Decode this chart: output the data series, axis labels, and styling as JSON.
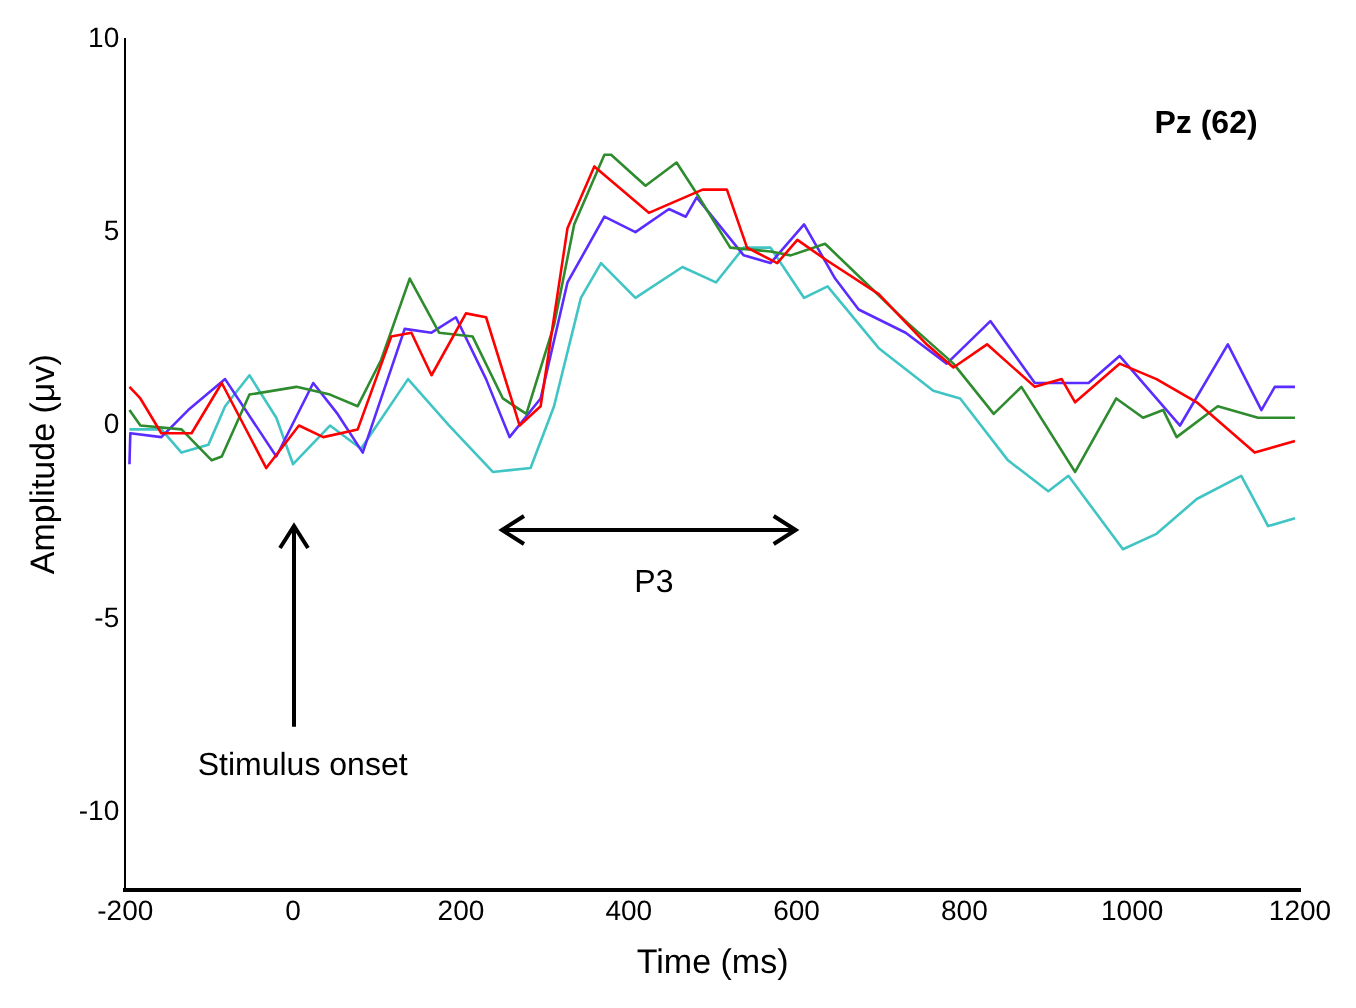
{
  "chart_data": {
    "type": "line",
    "xlabel": "Time (ms)",
    "ylabel": "Amplitude (μv)",
    "xlim": [
      -200,
      1200
    ],
    "ylim": [
      -12,
      10
    ],
    "xticks": [
      -200,
      0,
      200,
      400,
      600,
      800,
      1000,
      1200
    ],
    "yticks": [
      -10,
      -5,
      0,
      5,
      10
    ],
    "grid": false,
    "legend": false,
    "marker": "none",
    "line_style": "solid",
    "annotations": [
      "Pz (62)",
      "Stimulus onset",
      "P3"
    ],
    "series": [
      {
        "color": "#ff0000",
        "x": [
          -195,
          -182,
          -157,
          -121,
          -85,
          -32,
          7,
          36,
          77,
          117,
          141,
          165,
          206,
          230,
          270,
          295,
          327,
          359,
          424,
          488,
          517,
          541,
          577,
          601,
          634,
          698,
          755,
          787,
          827,
          884,
          916,
          932,
          985,
          1029,
          1077,
          1146,
          1194
        ],
        "values": [
          1,
          0.7,
          -0.2,
          -0.2,
          1.1,
          -1.1,
          0,
          -0.3,
          -0.1,
          2.3,
          2.4,
          1.3,
          2.9,
          2.8,
          0,
          0.5,
          5.1,
          6.7,
          5.5,
          6.1,
          6.1,
          4.6,
          4.2,
          4.8,
          4.3,
          3.4,
          2.1,
          1.5,
          2.1,
          1,
          1.2,
          0.6,
          1.6,
          1.2,
          0.6,
          -0.7,
          -0.4
        ]
      },
      {
        "color": "#2e8b2e",
        "x": [
          -195,
          -182,
          -133,
          -97,
          -85,
          -52,
          4,
          44,
          77,
          105,
          139,
          174,
          214,
          250,
          278,
          311,
          335,
          371,
          379,
          420,
          457,
          481,
          521,
          569,
          593,
          634,
          682,
          730,
          787,
          835,
          868,
          932,
          981,
          1013,
          1037,
          1053,
          1102,
          1150,
          1194
        ],
        "values": [
          0.4,
          0,
          -0.1,
          -0.9,
          -0.8,
          0.8,
          1,
          0.8,
          0.5,
          1.7,
          3.8,
          2.4,
          2.3,
          0.7,
          0.3,
          2.6,
          5.2,
          7,
          7,
          6.2,
          6.8,
          6,
          4.6,
          4.5,
          4.4,
          4.7,
          3.7,
          2.7,
          1.6,
          0.3,
          1,
          -1.2,
          0.7,
          0.2,
          0.4,
          -0.3,
          0.5,
          0.2,
          0.2
        ]
      },
      {
        "color": "#5a2cff",
        "x": [
          -195,
          -194,
          -157,
          -125,
          -81,
          -20,
          24,
          53,
          83,
          133,
          165,
          194,
          230,
          258,
          295,
          327,
          371,
          408,
          448,
          468,
          481,
          537,
          569,
          609,
          646,
          674,
          730,
          779,
          831,
          884,
          948,
          985,
          1057,
          1114,
          1154,
          1170,
          1194
        ],
        "values": [
          -1,
          -0.2,
          -0.3,
          0.4,
          1.2,
          -0.8,
          1.1,
          0.3,
          -0.7,
          2.5,
          2.4,
          2.8,
          1.2,
          -0.3,
          0.7,
          3.7,
          5.4,
          5,
          5.6,
          5.4,
          5.9,
          4.4,
          4.2,
          5.2,
          3.8,
          3,
          2.4,
          1.6,
          2.7,
          1.1,
          1.1,
          1.8,
          0,
          2.1,
          0.4,
          1,
          1
        ]
      },
      {
        "color": "#40c4c4",
        "x": [
          -195,
          -157,
          -133,
          -101,
          -81,
          -52,
          -20,
          0,
          44,
          81,
          137,
          186,
          238,
          283,
          311,
          343,
          367,
          408,
          464,
          504,
          537,
          569,
          609,
          637,
          698,
          763,
          795,
          852,
          900,
          924,
          989,
          1029,
          1077,
          1130,
          1162,
          1194
        ],
        "values": [
          -0.1,
          -0.1,
          -0.7,
          -0.5,
          0.5,
          1.3,
          0.2,
          -1,
          0,
          -0.6,
          1.2,
          0,
          -1.2,
          -1.1,
          0.5,
          3.3,
          4.2,
          3.3,
          4.1,
          3.7,
          4.6,
          4.6,
          3.3,
          3.6,
          2,
          0.9,
          0.7,
          -0.9,
          -1.7,
          -1.3,
          -3.2,
          -2.8,
          -1.9,
          -1.3,
          -2.6,
          -2.4
        ]
      }
    ]
  }
}
